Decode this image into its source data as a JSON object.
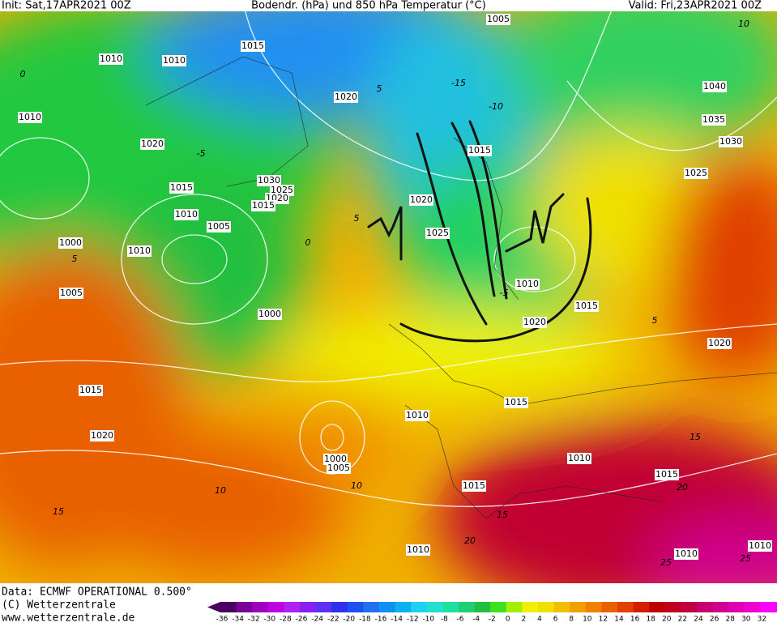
{
  "header": {
    "init": "Init: Sat,17APR2021 00Z",
    "title": "Bodendr. (hPa) und 850 hPa Temperatur (°C)",
    "valid": "Valid: Fri,23APR2021 00Z"
  },
  "isobar_labels": [
    "1010",
    "1010",
    "1015",
    "1005",
    "1010",
    "1020",
    "1020",
    "1040",
    "1035",
    "1030",
    "1025",
    "1015",
    "1030",
    "1025",
    "1020",
    "1015",
    "1010",
    "1005",
    "1000",
    "1010",
    "1020",
    "1025",
    "1015",
    "1010",
    "1015",
    "1020",
    "1005",
    "1000",
    "1020",
    "1015",
    "1015",
    "1010",
    "1020",
    "1000",
    "1005",
    "1010",
    "1015",
    "1015",
    "1010",
    "1010",
    "1010"
  ],
  "temperature_labels": [
    "10",
    "0",
    "5",
    "-5",
    "-10",
    "-15",
    "5",
    "0",
    "5",
    "10",
    "15",
    "10",
    "15",
    "20",
    "25",
    "25",
    "-5",
    "5",
    "15",
    "20"
  ],
  "footer": {
    "data": "Data: ECMWF OPERATIONAL 0.500°",
    "copyright": "(C) Wetterzentrale",
    "url": "www.wetterzentrale.de"
  },
  "colorbar": {
    "ticks": [
      -36,
      -34,
      -32,
      -30,
      -28,
      -26,
      -24,
      -22,
      -20,
      -18,
      -16,
      -14,
      -12,
      -10,
      -8,
      -6,
      -4,
      -2,
      0,
      2,
      4,
      6,
      8,
      10,
      12,
      14,
      16,
      18,
      20,
      22,
      24,
      26,
      28,
      30,
      32
    ],
    "colors": [
      "#4a0060",
      "#7a0099",
      "#a000c0",
      "#c000e0",
      "#b020f0",
      "#8a20f0",
      "#6030f0",
      "#3030f0",
      "#2050f0",
      "#2070f0",
      "#1090f0",
      "#10b0f0",
      "#20d0f0",
      "#20e0d0",
      "#20e0a0",
      "#20d070",
      "#20c040",
      "#40e020",
      "#a0f000",
      "#f0f000",
      "#f0e000",
      "#f0c000",
      "#f0a000",
      "#f08000",
      "#e86000",
      "#e04000",
      "#d02000",
      "#c00000",
      "#c00020",
      "#c00040",
      "#c80070",
      "#d00090",
      "#e000b0",
      "#f000d0",
      "#ff00ff"
    ]
  }
}
